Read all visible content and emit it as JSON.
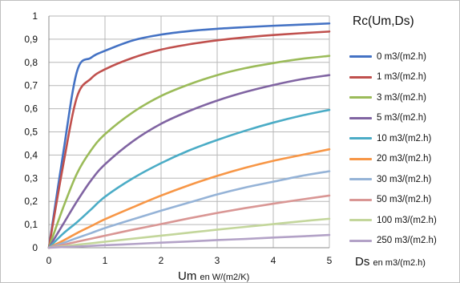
{
  "chart_data": {
    "type": "line",
    "legend_title": "Rc(Um,Ds)",
    "xlabel_main": "Um",
    "xlabel_unit": "en W/(m2/K)",
    "ds_label_main": "Ds",
    "ds_label_unit": "en m3/(m2.h)",
    "xlim": [
      0,
      5
    ],
    "ylim": [
      0,
      1
    ],
    "x_ticks": [
      "0",
      "1",
      "2",
      "3",
      "4",
      "5"
    ],
    "y_ticks": [
      "0",
      "0,1",
      "0,2",
      "0,3",
      "0,4",
      "0,5",
      "0,6",
      "0,7",
      "0,8",
      "0,9",
      "1"
    ],
    "grid": true,
    "legend_position": "right",
    "x": [
      0,
      0.25,
      0.5,
      0.75,
      1,
      1.5,
      2,
      2.5,
      3,
      3.5,
      4,
      4.5,
      5
    ],
    "series": [
      {
        "name": "0 m3/(m2.h)",
        "color": "#4472c4",
        "values": [
          0,
          0.4,
          0.76,
          0.82,
          0.85,
          0.895,
          0.92,
          0.935,
          0.945,
          0.952,
          0.958,
          0.963,
          0.968
        ]
      },
      {
        "name": "1 m3/(m2.h)",
        "color": "#c0504d",
        "values": [
          0,
          0.35,
          0.65,
          0.73,
          0.77,
          0.82,
          0.855,
          0.878,
          0.895,
          0.908,
          0.918,
          0.926,
          0.933
        ]
      },
      {
        "name": "3 m3/(m2.h)",
        "color": "#9bbb59",
        "values": [
          0,
          0.17,
          0.32,
          0.42,
          0.49,
          0.585,
          0.655,
          0.705,
          0.745,
          0.775,
          0.797,
          0.815,
          0.828
        ]
      },
      {
        "name": "5 m3/(m2.h)",
        "color": "#8064a2",
        "values": [
          0,
          0.1,
          0.2,
          0.29,
          0.36,
          0.46,
          0.535,
          0.59,
          0.635,
          0.672,
          0.702,
          0.727,
          0.745
        ]
      },
      {
        "name": "10 m3/(m2.h)",
        "color": "#4bacc6",
        "values": [
          0,
          0.06,
          0.11,
          0.165,
          0.22,
          0.3,
          0.365,
          0.42,
          0.465,
          0.505,
          0.54,
          0.57,
          0.595
        ]
      },
      {
        "name": "20 m3/(m2.h)",
        "color": "#f79646",
        "values": [
          0,
          0.03,
          0.063,
          0.093,
          0.123,
          0.175,
          0.225,
          0.27,
          0.31,
          0.345,
          0.375,
          0.4,
          0.425
        ]
      },
      {
        "name": "30 m3/(m2.h)",
        "color": "#95b3d7",
        "values": [
          0,
          0.02,
          0.042,
          0.063,
          0.085,
          0.123,
          0.16,
          0.195,
          0.23,
          0.26,
          0.285,
          0.31,
          0.33
        ]
      },
      {
        "name": "50 m3/(m2.h)",
        "color": "#d99694",
        "values": [
          0,
          0.012,
          0.026,
          0.039,
          0.052,
          0.078,
          0.102,
          0.127,
          0.15,
          0.171,
          0.19,
          0.208,
          0.225
        ]
      },
      {
        "name": "100 m3/(m2.h)",
        "color": "#c3d69b",
        "values": [
          0,
          0.006,
          0.013,
          0.019,
          0.026,
          0.039,
          0.052,
          0.065,
          0.078,
          0.09,
          0.102,
          0.114,
          0.125
        ]
      },
      {
        "name": "250 m3/(m2.h)",
        "color": "#b3a2c7",
        "values": [
          0,
          0.003,
          0.005,
          0.008,
          0.011,
          0.016,
          0.022,
          0.027,
          0.033,
          0.038,
          0.044,
          0.049,
          0.055
        ]
      }
    ]
  }
}
